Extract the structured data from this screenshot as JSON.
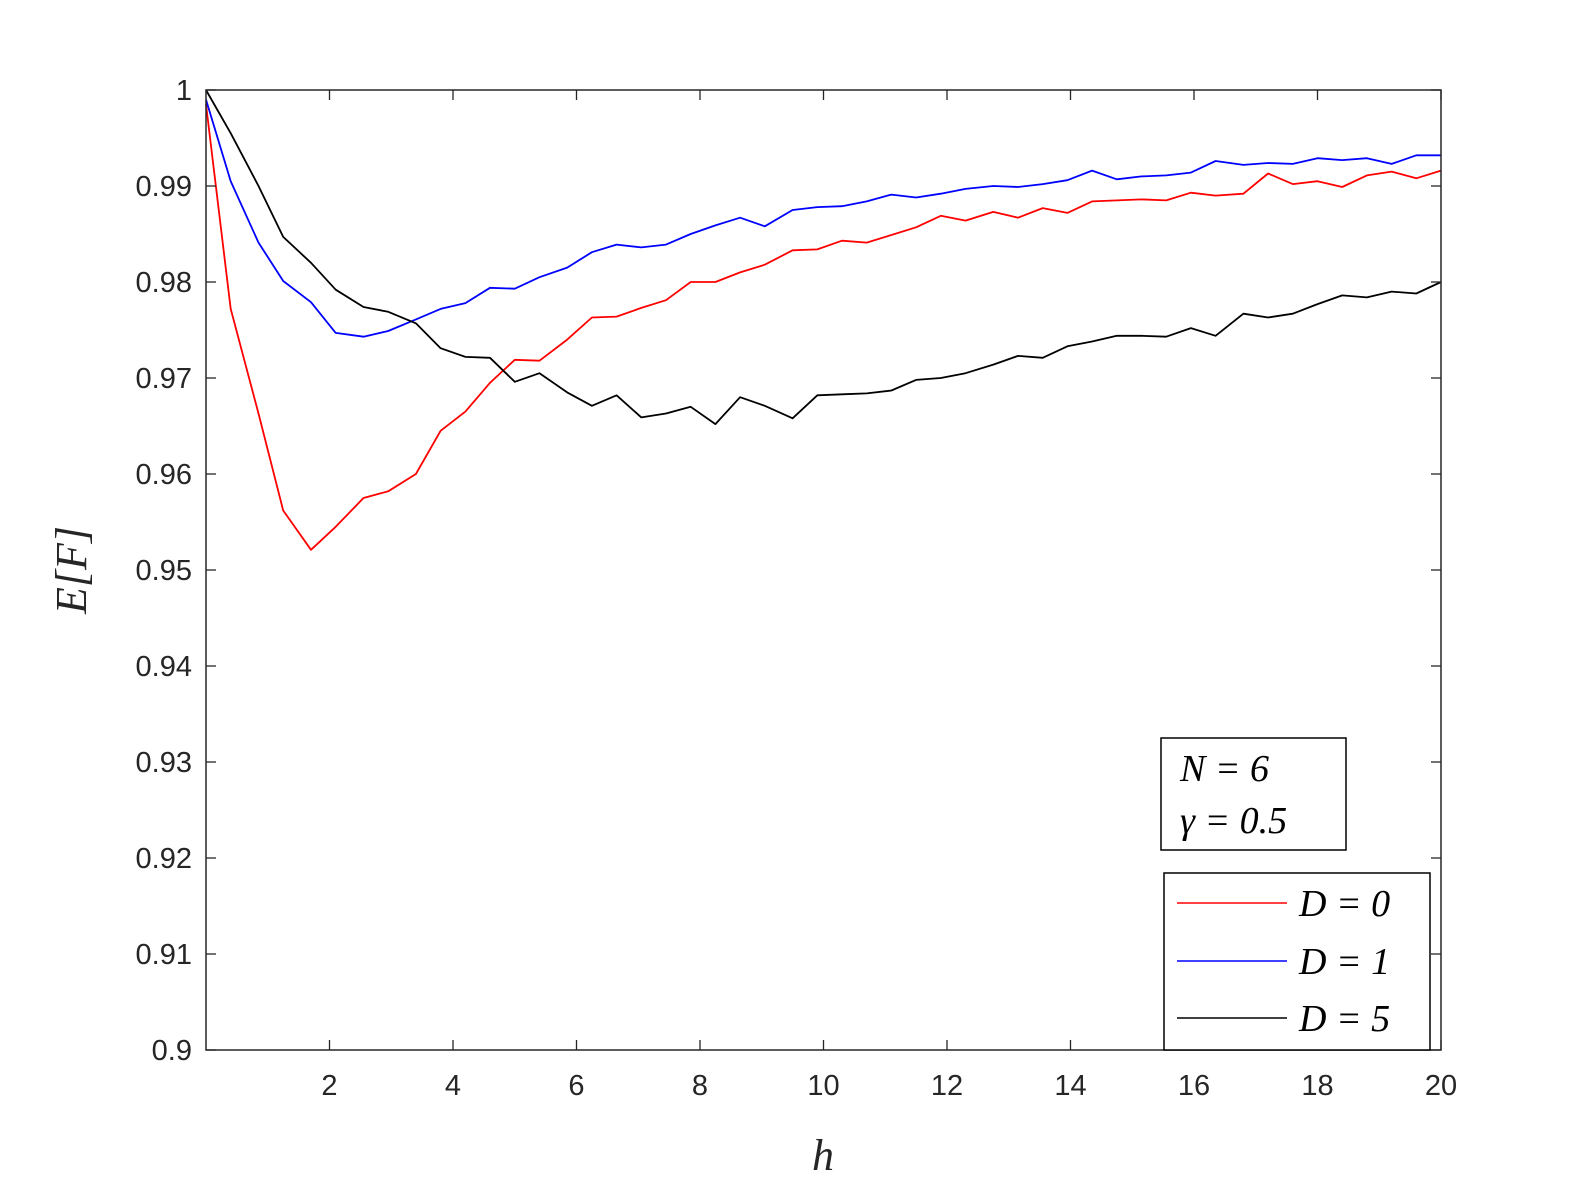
{
  "chart_data": {
    "type": "line",
    "xlabel": "h",
    "ylabel": "E[F]",
    "xlim": [
      0,
      20
    ],
    "ylim": [
      0.9,
      1.0
    ],
    "xticks": [
      2,
      4,
      6,
      8,
      10,
      12,
      14,
      16,
      18,
      20
    ],
    "xtick_labels": [
      "2",
      "4",
      "6",
      "8",
      "10",
      "12",
      "14",
      "16",
      "18",
      "20"
    ],
    "yticks": [
      0.9,
      0.91,
      0.92,
      0.93,
      0.94,
      0.95,
      0.96,
      0.97,
      0.98,
      0.99,
      1.0
    ],
    "ytick_labels": [
      "0.9",
      "0.91",
      "0.92",
      "0.93",
      "0.94",
      "0.95",
      "0.96",
      "0.97",
      "0.98",
      "0.99",
      "1"
    ],
    "grid": false,
    "legend_position": "bottom-right",
    "annotation": {
      "line1": "N = 6",
      "line2": "γ = 0.5"
    },
    "series": [
      {
        "name": "D = 0",
        "color": "#ff0000",
        "points": [
          [
            0,
            0.9985
          ],
          [
            0.4,
            0.9772
          ],
          [
            0.85,
            0.9663
          ],
          [
            1.25,
            0.9562
          ],
          [
            1.7,
            0.9521
          ],
          [
            2.1,
            0.9545
          ],
          [
            2.55,
            0.9575
          ],
          [
            2.95,
            0.9582
          ],
          [
            3.4,
            0.96
          ],
          [
            3.8,
            0.9645
          ],
          [
            4.2,
            0.9665
          ],
          [
            4.6,
            0.9695
          ],
          [
            5.0,
            0.9719
          ],
          [
            5.4,
            0.9718
          ],
          [
            5.85,
            0.974
          ],
          [
            6.25,
            0.9763
          ],
          [
            6.65,
            0.9764
          ],
          [
            7.05,
            0.9773
          ],
          [
            7.45,
            0.9781
          ],
          [
            7.85,
            0.98
          ],
          [
            8.25,
            0.98
          ],
          [
            8.65,
            0.981
          ],
          [
            9.05,
            0.9818
          ],
          [
            9.5,
            0.9833
          ],
          [
            9.9,
            0.9834
          ],
          [
            10.3,
            0.9843
          ],
          [
            10.7,
            0.9841
          ],
          [
            11.1,
            0.9849
          ],
          [
            11.5,
            0.9857
          ],
          [
            11.9,
            0.9869
          ],
          [
            12.3,
            0.9864
          ],
          [
            12.75,
            0.9873
          ],
          [
            13.15,
            0.9867
          ],
          [
            13.55,
            0.9877
          ],
          [
            13.95,
            0.9872
          ],
          [
            14.35,
            0.9884
          ],
          [
            14.75,
            0.9885
          ],
          [
            15.15,
            0.9886
          ],
          [
            15.55,
            0.9885
          ],
          [
            15.95,
            0.9893
          ],
          [
            16.35,
            0.989
          ],
          [
            16.8,
            0.9892
          ],
          [
            17.2,
            0.9913
          ],
          [
            17.6,
            0.9902
          ],
          [
            18.0,
            0.9905
          ],
          [
            18.4,
            0.9899
          ],
          [
            18.8,
            0.9911
          ],
          [
            19.2,
            0.9915
          ],
          [
            19.6,
            0.9908
          ],
          [
            20,
            0.9916
          ]
        ]
      },
      {
        "name": "D = 1",
        "color": "#0000ff",
        "points": [
          [
            0,
            0.999
          ],
          [
            0.4,
            0.9905
          ],
          [
            0.85,
            0.9841
          ],
          [
            1.25,
            0.9801
          ],
          [
            1.7,
            0.9779
          ],
          [
            2.1,
            0.9747
          ],
          [
            2.55,
            0.9743
          ],
          [
            2.95,
            0.9749
          ],
          [
            3.4,
            0.9761
          ],
          [
            3.8,
            0.9772
          ],
          [
            4.2,
            0.9778
          ],
          [
            4.6,
            0.9794
          ],
          [
            5.0,
            0.9793
          ],
          [
            5.4,
            0.9805
          ],
          [
            5.85,
            0.9815
          ],
          [
            6.25,
            0.9831
          ],
          [
            6.65,
            0.9839
          ],
          [
            7.05,
            0.9836
          ],
          [
            7.45,
            0.9839
          ],
          [
            7.85,
            0.985
          ],
          [
            8.25,
            0.9859
          ],
          [
            8.65,
            0.9867
          ],
          [
            9.05,
            0.9858
          ],
          [
            9.5,
            0.9875
          ],
          [
            9.9,
            0.9878
          ],
          [
            10.3,
            0.9879
          ],
          [
            10.7,
            0.9884
          ],
          [
            11.1,
            0.9891
          ],
          [
            11.5,
            0.9888
          ],
          [
            11.9,
            0.9892
          ],
          [
            12.3,
            0.9897
          ],
          [
            12.75,
            0.99
          ],
          [
            13.15,
            0.9899
          ],
          [
            13.55,
            0.9902
          ],
          [
            13.95,
            0.9906
          ],
          [
            14.35,
            0.9916
          ],
          [
            14.75,
            0.9907
          ],
          [
            15.15,
            0.991
          ],
          [
            15.55,
            0.9911
          ],
          [
            15.95,
            0.9914
          ],
          [
            16.35,
            0.9926
          ],
          [
            16.8,
            0.9922
          ],
          [
            17.2,
            0.9924
          ],
          [
            17.6,
            0.9923
          ],
          [
            18.0,
            0.9929
          ],
          [
            18.4,
            0.9927
          ],
          [
            18.8,
            0.9929
          ],
          [
            19.2,
            0.9923
          ],
          [
            19.6,
            0.9932
          ],
          [
            20,
            0.9932
          ]
        ]
      },
      {
        "name": "D = 5",
        "color": "#000000",
        "points": [
          [
            0,
            1.0
          ],
          [
            0.4,
            0.9955
          ],
          [
            0.85,
            0.99
          ],
          [
            1.25,
            0.9847
          ],
          [
            1.7,
            0.982
          ],
          [
            2.1,
            0.9792
          ],
          [
            2.55,
            0.9774
          ],
          [
            2.95,
            0.9769
          ],
          [
            3.4,
            0.9757
          ],
          [
            3.8,
            0.9731
          ],
          [
            4.2,
            0.9722
          ],
          [
            4.6,
            0.9721
          ],
          [
            5.0,
            0.9696
          ],
          [
            5.4,
            0.9705
          ],
          [
            5.85,
            0.9685
          ],
          [
            6.25,
            0.9671
          ],
          [
            6.65,
            0.9682
          ],
          [
            7.05,
            0.9659
          ],
          [
            7.45,
            0.9663
          ],
          [
            7.85,
            0.967
          ],
          [
            8.25,
            0.9652
          ],
          [
            8.65,
            0.968
          ],
          [
            9.05,
            0.9671
          ],
          [
            9.5,
            0.9658
          ],
          [
            9.9,
            0.9682
          ],
          [
            10.3,
            0.9683
          ],
          [
            10.7,
            0.9684
          ],
          [
            11.1,
            0.9687
          ],
          [
            11.5,
            0.9698
          ],
          [
            11.9,
            0.97
          ],
          [
            12.3,
            0.9705
          ],
          [
            12.75,
            0.9714
          ],
          [
            13.15,
            0.9723
          ],
          [
            13.55,
            0.9721
          ],
          [
            13.95,
            0.9733
          ],
          [
            14.35,
            0.9738
          ],
          [
            14.75,
            0.9744
          ],
          [
            15.15,
            0.9744
          ],
          [
            15.55,
            0.9743
          ],
          [
            15.95,
            0.9752
          ],
          [
            16.35,
            0.9744
          ],
          [
            16.8,
            0.9767
          ],
          [
            17.2,
            0.9763
          ],
          [
            17.6,
            0.9767
          ],
          [
            18.0,
            0.9777
          ],
          [
            18.4,
            0.9786
          ],
          [
            18.8,
            0.9784
          ],
          [
            19.2,
            0.979
          ],
          [
            19.6,
            0.9788
          ],
          [
            20,
            0.98
          ]
        ]
      }
    ]
  }
}
